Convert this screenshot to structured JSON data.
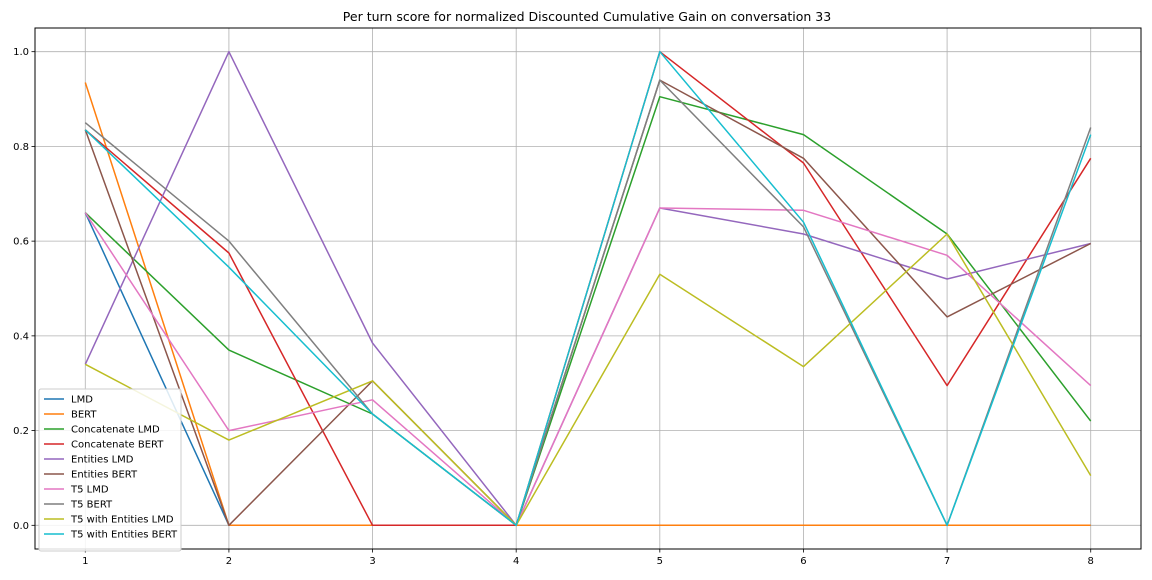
{
  "chart_data": {
    "type": "line",
    "title": "Per turn score for normalized Discounted Cumulative Gain on conversation 33",
    "xlabel": "",
    "ylabel": "",
    "x": [
      1,
      2,
      3,
      4,
      5,
      6,
      7,
      8
    ],
    "xlim": [
      0.65,
      8.35
    ],
    "ylim": [
      -0.05,
      1.05
    ],
    "yticks": [
      "0.0",
      "0.2",
      "0.4",
      "0.6",
      "0.8",
      "1.0"
    ],
    "grid": true,
    "legend_position": "lower-left",
    "series": [
      {
        "name": "LMD",
        "color": "#1f77b4",
        "values": [
          0.66,
          0,
          0,
          0,
          0,
          0,
          0,
          0
        ]
      },
      {
        "name": "BERT",
        "color": "#ff7f0e",
        "values": [
          0.935,
          0,
          0,
          0,
          0,
          0,
          0,
          0
        ]
      },
      {
        "name": "Concatenate LMD",
        "color": "#2ca02c",
        "values": [
          0.66,
          0.37,
          0.235,
          0,
          0.905,
          0.825,
          0.615,
          0.22
        ]
      },
      {
        "name": "Concatenate BERT",
        "color": "#d62728",
        "values": [
          0.835,
          0.575,
          0,
          0,
          1.0,
          0.765,
          0.295,
          0.775
        ]
      },
      {
        "name": "Entities LMD",
        "color": "#9467bd",
        "values": [
          0.34,
          1.0,
          0.385,
          0,
          0.67,
          0.615,
          0.52,
          0.595
        ]
      },
      {
        "name": "Entities BERT",
        "color": "#8c564b",
        "values": [
          0.835,
          0,
          0.305,
          0,
          0.94,
          0.775,
          0.44,
          0.595
        ]
      },
      {
        "name": "T5 LMD",
        "color": "#e377c2",
        "values": [
          0.66,
          0.2,
          0.265,
          0,
          0.67,
          0.665,
          0.57,
          0.295
        ]
      },
      {
        "name": "T5 BERT",
        "color": "#7f7f7f",
        "values": [
          0.85,
          0.6,
          0.235,
          0,
          0.94,
          0.63,
          0,
          0.84
        ]
      },
      {
        "name": "T5 with Entities LMD",
        "color": "#bcbd22",
        "values": [
          0.34,
          0.18,
          0.305,
          0,
          0.53,
          0.335,
          0.615,
          0.105
        ]
      },
      {
        "name": "T5 with Entities BERT",
        "color": "#17becf",
        "values": [
          0.835,
          0.545,
          0.235,
          0,
          1.0,
          0.64,
          0,
          0.825
        ]
      }
    ]
  }
}
